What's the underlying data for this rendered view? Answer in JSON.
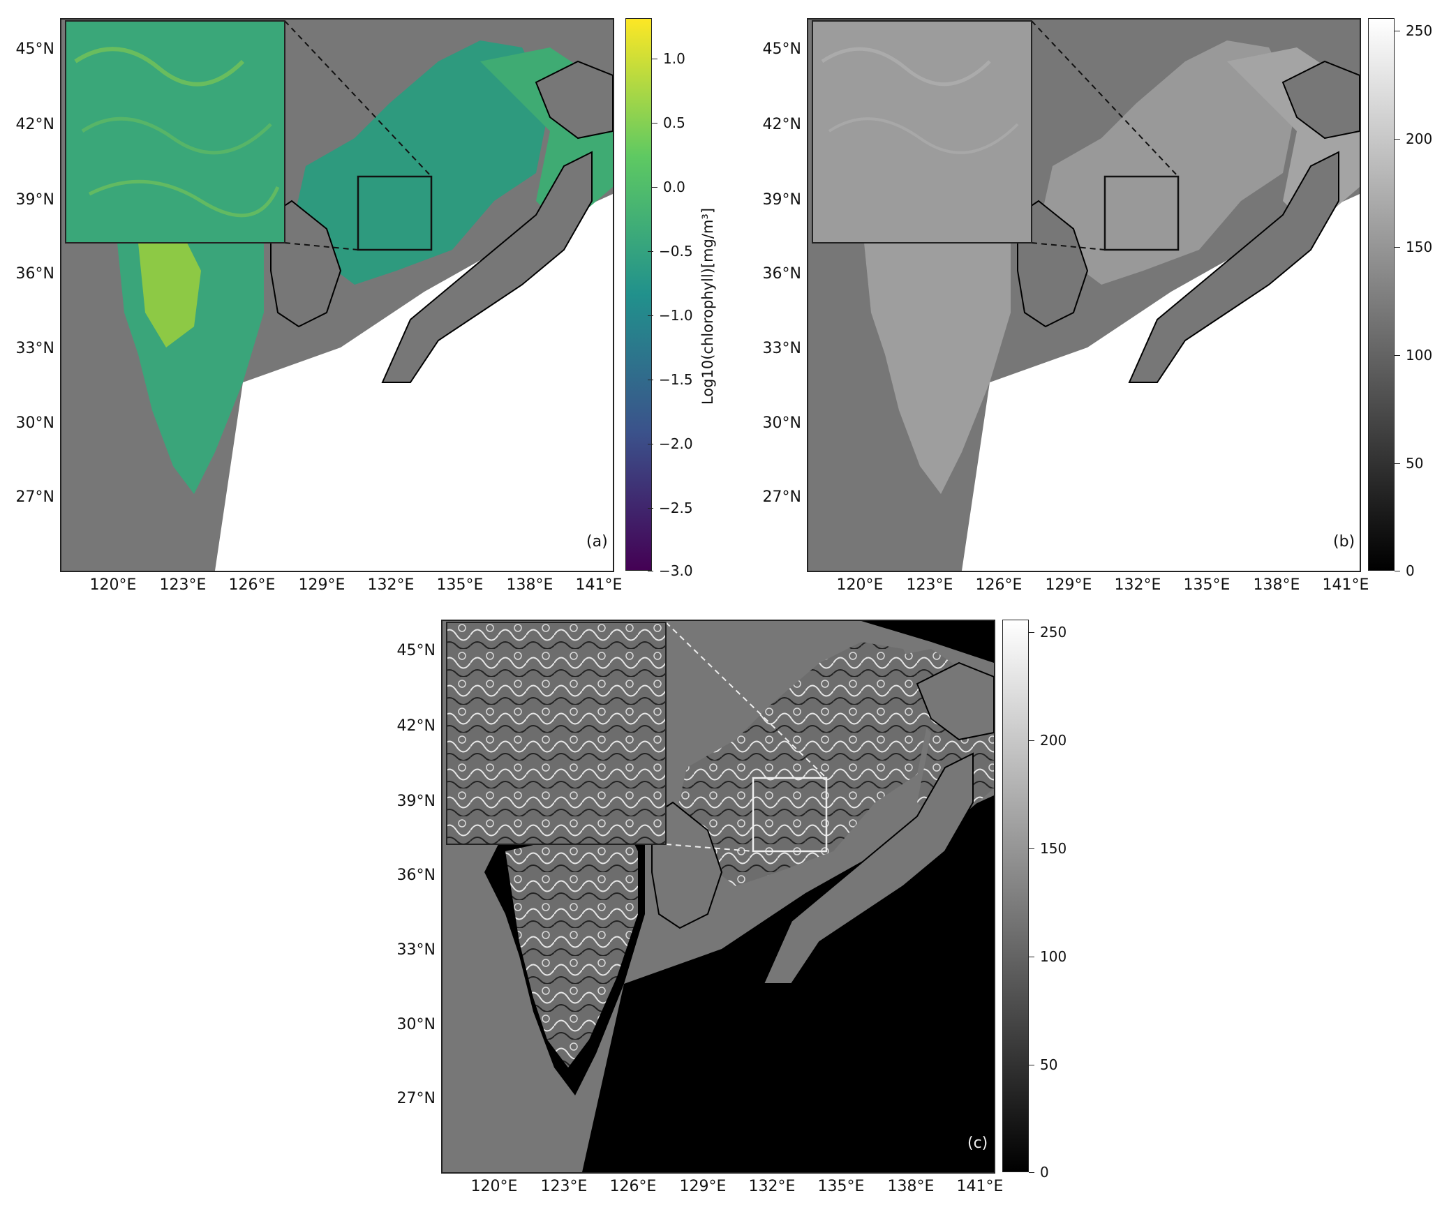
{
  "panels": [
    {
      "id": "a",
      "label": "(a)"
    },
    {
      "id": "b",
      "label": "(b)"
    },
    {
      "id": "c",
      "label": "(c)"
    }
  ],
  "lat_labels": [
    "45°N",
    "42°N",
    "39°N",
    "36°N",
    "33°N",
    "30°N",
    "27°N"
  ],
  "lon_labels": [
    "120°E",
    "123°E",
    "126°E",
    "129°E",
    "132°E",
    "135°E",
    "138°E",
    "141°E"
  ],
  "colorbar_a": {
    "label": "Log10(chlorophyll)[mg/m³]",
    "ticks": [
      "1.0",
      "0.5",
      "0.0",
      "−0.5",
      "−1.0",
      "−1.5",
      "−2.0",
      "−2.5",
      "−3.0"
    ],
    "colormap": "viridis"
  },
  "colorbar_gray": {
    "ticks": [
      "250",
      "200",
      "150",
      "100",
      "50",
      "0"
    ],
    "colormap": "gray"
  },
  "colors": {
    "land": "#777777",
    "no_data": "#ffffff",
    "ocean_a": "#2b9a83",
    "coastal_a": "#8cc845",
    "ocean_b": "#9a9a9a",
    "ocean_c_bg": "#000000"
  }
}
